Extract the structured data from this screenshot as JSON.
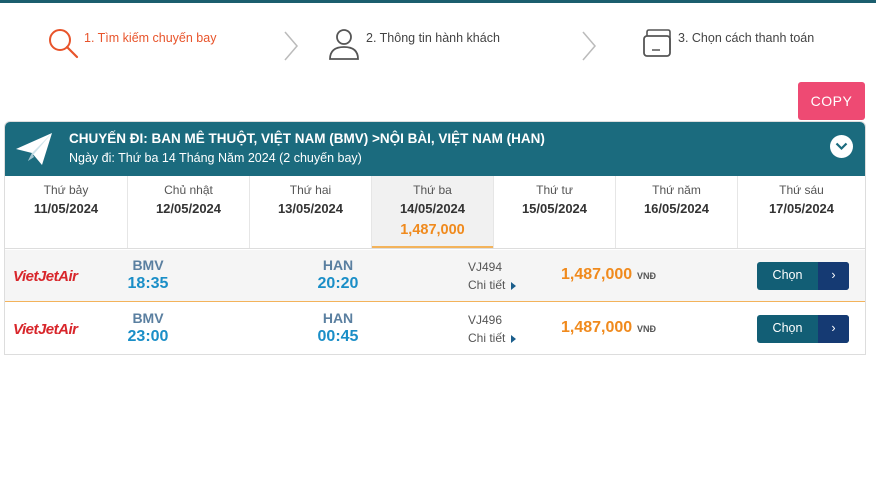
{
  "steps": [
    {
      "label": "1. Tìm kiếm chuyến bay",
      "icon": "search-icon",
      "active": true
    },
    {
      "label": "2. Thông tin hành khách",
      "icon": "user-icon",
      "active": false
    },
    {
      "label": "3. Chọn cách thanh toán",
      "icon": "card-icon",
      "active": false
    }
  ],
  "copy_label": "COPY",
  "trip": {
    "route": "CHUYẾN ĐI: BAN MÊ THUỘT, VIỆT NAM (BMV) >NỘI BÀI, VIỆT NAM (HAN)",
    "date_line": "Ngày đi: Thứ ba 14 Tháng Năm 2024 (2 chuyến bay)"
  },
  "days": [
    {
      "name": "Thứ bảy",
      "date": "11/05/2024",
      "price": ""
    },
    {
      "name": "Chủ nhật",
      "date": "12/05/2024",
      "price": ""
    },
    {
      "name": "Thứ hai",
      "date": "13/05/2024",
      "price": ""
    },
    {
      "name": "Thứ ba",
      "date": "14/05/2024",
      "price": "1,487,000"
    },
    {
      "name": "Thứ tư",
      "date": "15/05/2024",
      "price": ""
    },
    {
      "name": "Thứ năm",
      "date": "16/05/2024",
      "price": ""
    },
    {
      "name": "Thứ sáu",
      "date": "17/05/2024",
      "price": ""
    }
  ],
  "flights": [
    {
      "airline": "VietJetAir",
      "from_code": "BMV",
      "depart": "18:35",
      "to_code": "HAN",
      "arrive": "20:20",
      "flight_no": "VJ494",
      "detail_label": "Chi tiết",
      "price": "1,487,000",
      "currency": "VNĐ",
      "choose_label": "Chọn",
      "choose_arrow": "›"
    },
    {
      "airline": "VietJetAir",
      "from_code": "BMV",
      "depart": "23:00",
      "to_code": "HAN",
      "arrive": "00:45",
      "flight_no": "VJ496",
      "detail_label": "Chi tiết",
      "price": "1,487,000",
      "currency": "VNĐ",
      "choose_label": "Chọn",
      "choose_arrow": "›"
    }
  ],
  "colors": {
    "accent": "#e8542b",
    "header_bg": "#1b6b7e",
    "copy_button": "#ee4a73",
    "price": "#f08a1d",
    "time": "#1a8ec7",
    "choose_button": "#125e75"
  }
}
